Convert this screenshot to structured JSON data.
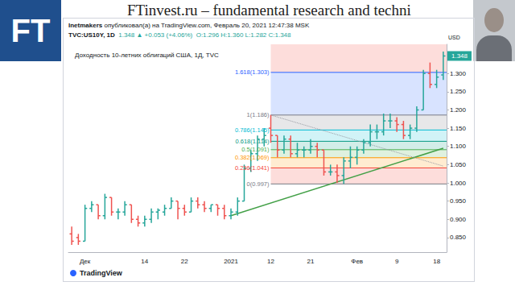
{
  "page": {
    "logo": "FT",
    "heading": "FTinvest.ru – fundamental research and techni"
  },
  "chart_data": {
    "type": "ohlc",
    "header": {
      "publisher": "Inetmakers",
      "published": "опубликовал(а) на TradingView.com, Февраль 20, 2021 12:47:38 MSK",
      "symbol": "TVC:US10Y, 1D",
      "change": "1.348 ▲ +0.053 (+4.06%)",
      "ohlc": "O:1.296 H:1.360 L:1.282 C:1.348"
    },
    "title": "Доходность 10-летних облигаций США, 1Д, TVC",
    "source": "TradingView",
    "y_label": "USD",
    "categories": [
      null,
      null,
      "Дек",
      null,
      null,
      null,
      null,
      null,
      null,
      null,
      null,
      "14",
      null,
      null,
      null,
      null,
      null,
      "22",
      null,
      null,
      null,
      null,
      null,
      null,
      "2021",
      null,
      null,
      null,
      null,
      null,
      "12",
      null,
      null,
      null,
      null,
      null,
      "21",
      null,
      null,
      null,
      null,
      null,
      null,
      "Фев",
      null,
      null,
      null,
      null,
      null,
      "9",
      null,
      null,
      null,
      null,
      null,
      "18",
      null
    ],
    "open": [
      0.86,
      0.85,
      0.84,
      0.93,
      0.94,
      0.91,
      0.96,
      0.92,
      0.92,
      0.94,
      0.9,
      0.89,
      0.9,
      0.92,
      0.92,
      0.93,
      0.95,
      0.93,
      0.92,
      0.95,
      0.94,
      0.93,
      0.94,
      0.93,
      0.91,
      0.92,
      0.95,
      1.04,
      1.08,
      1.12,
      1.15,
      1.13,
      1.09,
      1.12,
      1.08,
      1.09,
      1.09,
      1.1,
      1.09,
      1.03,
      1.03,
      1.02,
      1.06,
      1.07,
      1.09,
      1.11,
      1.14,
      1.14,
      1.17,
      1.17,
      1.16,
      1.13,
      1.15,
      1.2,
      1.3,
      1.27,
      1.296
    ],
    "high": [
      0.88,
      0.86,
      0.94,
      0.95,
      0.94,
      0.97,
      0.96,
      0.93,
      0.95,
      0.94,
      0.91,
      0.91,
      0.93,
      0.93,
      0.94,
      0.96,
      0.95,
      0.94,
      0.96,
      0.96,
      0.95,
      0.94,
      0.94,
      0.94,
      0.93,
      0.96,
      1.05,
      1.09,
      1.13,
      1.15,
      1.186,
      1.13,
      1.13,
      1.13,
      1.11,
      1.1,
      1.12,
      1.11,
      1.09,
      1.05,
      1.05,
      1.07,
      1.1,
      1.1,
      1.12,
      1.16,
      1.16,
      1.19,
      1.19,
      1.18,
      1.17,
      1.16,
      1.21,
      1.31,
      1.33,
      1.31,
      1.36
    ],
    "low": [
      0.83,
      0.83,
      0.84,
      0.92,
      0.9,
      0.9,
      0.91,
      0.9,
      0.91,
      0.89,
      0.88,
      0.88,
      0.89,
      0.9,
      0.91,
      0.93,
      0.9,
      0.91,
      0.92,
      0.93,
      0.92,
      0.92,
      0.91,
      0.9,
      0.9,
      0.91,
      0.95,
      1.03,
      1.06,
      1.1,
      1.11,
      1.07,
      1.08,
      1.07,
      1.07,
      1.07,
      1.08,
      1.07,
      1.02,
      1.02,
      1.0,
      0.997,
      1.04,
      1.05,
      1.08,
      1.1,
      1.12,
      1.13,
      1.15,
      1.14,
      1.12,
      1.12,
      1.14,
      1.2,
      1.26,
      1.26,
      1.282
    ],
    "close": [
      0.84,
      0.84,
      0.93,
      0.94,
      0.91,
      0.96,
      0.92,
      0.92,
      0.94,
      0.9,
      0.89,
      0.9,
      0.92,
      0.925,
      0.93,
      0.95,
      0.93,
      0.92,
      0.95,
      0.94,
      0.93,
      0.94,
      0.93,
      0.91,
      0.92,
      0.95,
      1.04,
      1.08,
      1.12,
      1.13,
      1.13,
      1.09,
      1.12,
      1.08,
      1.09,
      1.09,
      1.1,
      1.09,
      1.03,
      1.03,
      1.02,
      1.06,
      1.07,
      1.09,
      1.11,
      1.14,
      1.14,
      1.17,
      1.17,
      1.16,
      1.13,
      1.15,
      1.2,
      1.3,
      1.27,
      1.29,
      1.348
    ],
    "last_price": 1.348,
    "ylim": [
      0.81,
      1.38
    ],
    "yticks": [
      {
        "value": 0.85,
        "label": "0.850"
      },
      {
        "value": 0.9,
        "label": "0.900"
      },
      {
        "value": 0.95,
        "label": "0.950"
      },
      {
        "value": 1.0,
        "label": "1.000"
      },
      {
        "value": 1.05,
        "label": "1.050"
      },
      {
        "value": 1.1,
        "label": "1.100"
      },
      {
        "value": 1.15,
        "label": "1.150"
      },
      {
        "value": 1.2,
        "label": "1.200"
      },
      {
        "value": 1.25,
        "label": "1.250"
      },
      {
        "value": 1.3,
        "label": "1.300"
      }
    ],
    "grid": false,
    "fibonacci": {
      "from": 30,
      "levels": [
        {
          "value": 0.997,
          "label": "0(0.997)",
          "color": "#787b86"
        },
        {
          "value": 1.041,
          "label": "0.236(1.041)",
          "color": "#f44336"
        },
        {
          "value": 1.069,
          "label": "0.382(1.069)",
          "color": "#ff9800"
        },
        {
          "value": 1.091,
          "label": "0.5(1.091)",
          "color": "#4caf50"
        },
        {
          "value": 1.114,
          "label": "0.618(1.114)",
          "color": "#089981"
        },
        {
          "value": 1.145,
          "label": "0.786(1.145)",
          "color": "#00bcd4"
        },
        {
          "value": 1.186,
          "label": "1(1.186)",
          "color": "#787b86"
        },
        {
          "value": 1.303,
          "label": "1.618(1.303)",
          "color": "#2962ff"
        }
      ],
      "colors": [
        "#f44336",
        "#ff9800",
        "#4caf50",
        "#089981",
        "#00bcd4",
        "#787b86",
        "#2962ff",
        "#f44336"
      ]
    },
    "trendline": {
      "x": [
        24,
        56
      ],
      "values": [
        0.91,
        1.095
      ],
      "color": "#43a047",
      "line_style": "solid"
    },
    "fib_trendline": {
      "x": [
        30,
        56
      ],
      "values": [
        1.186,
        1.046
      ],
      "color": "#9598a1",
      "line_style": "dotted"
    }
  }
}
